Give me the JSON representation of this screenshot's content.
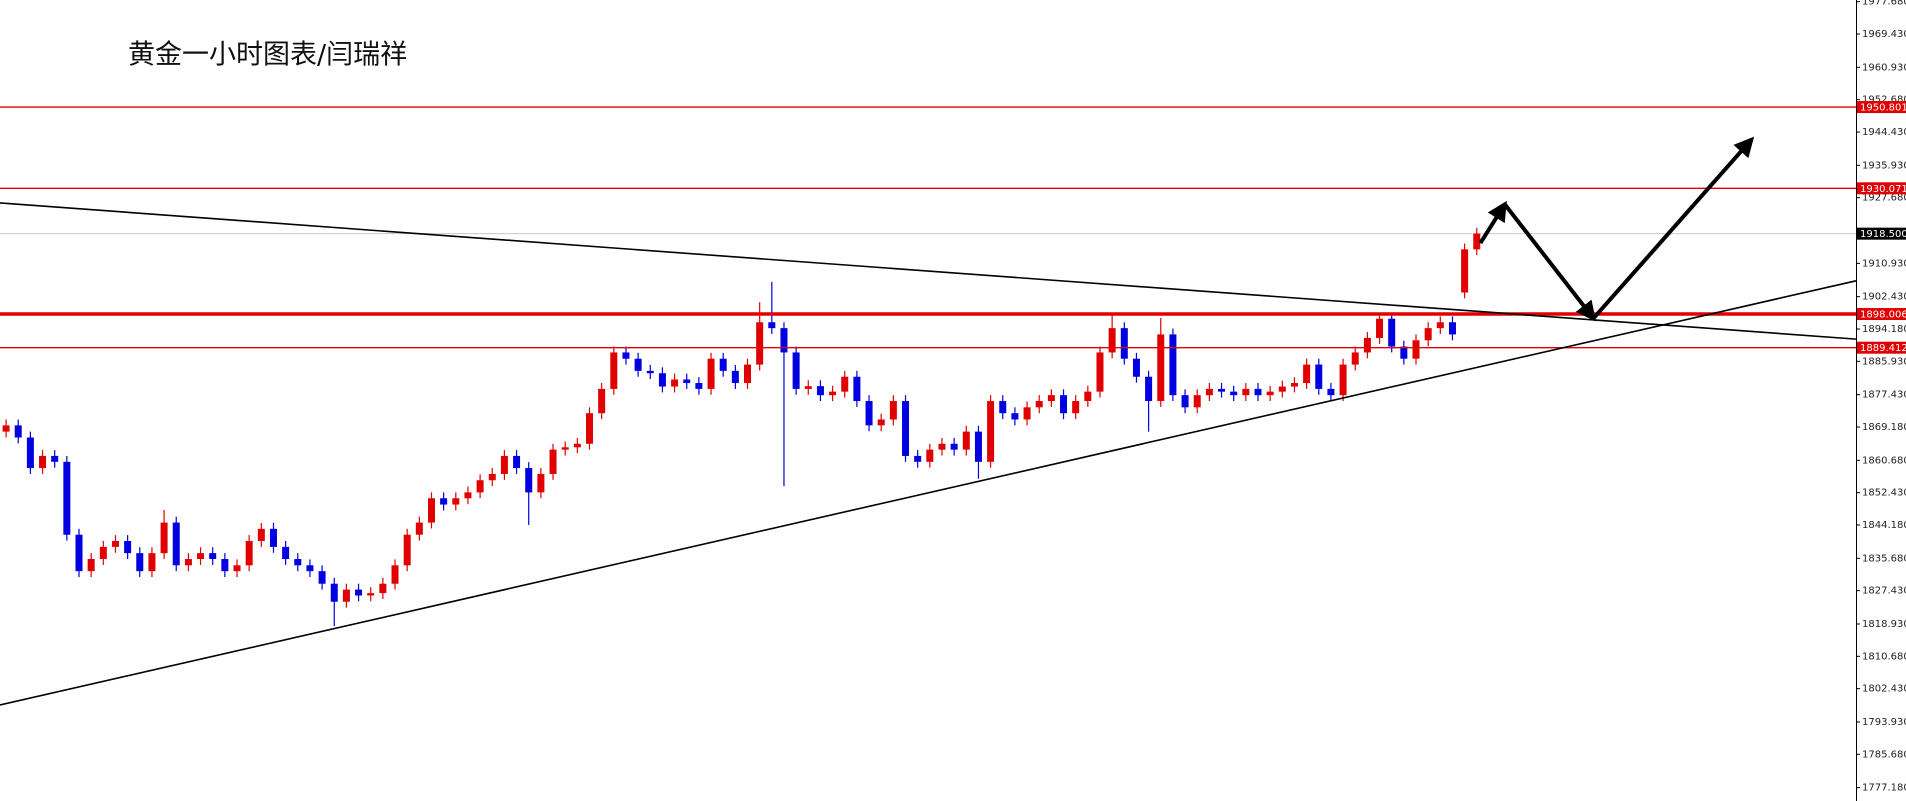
{
  "chart_data": {
    "type": "candlestick",
    "title": "黄金一小时图表/闫瑞祥",
    "up_color": "#e00000",
    "down_color": "#0000e0",
    "xlim": [
      -0.5,
      152.2
    ],
    "ylim": [
      1773.77,
      1978.11
    ],
    "yticks": [
      {
        "value": 1977.68,
        "label": "1977.680"
      },
      {
        "value": 1969.43,
        "label": "1969.430"
      },
      {
        "value": 1960.93,
        "label": "1960.930"
      },
      {
        "value": 1952.68,
        "label": "1952.680"
      },
      {
        "value": 1944.43,
        "label": "1944.430"
      },
      {
        "value": 1935.93,
        "label": "1935.930"
      },
      {
        "value": 1927.68,
        "label": "1927.680"
      },
      {
        "value": 1910.93,
        "label": "1910.930"
      },
      {
        "value": 1902.43,
        "label": "1902.430"
      },
      {
        "value": 1894.18,
        "label": "1894.180"
      },
      {
        "value": 1885.93,
        "label": "1885.930"
      },
      {
        "value": 1877.43,
        "label": "1877.430"
      },
      {
        "value": 1869.18,
        "label": "1869.180"
      },
      {
        "value": 1860.68,
        "label": "1860.680"
      },
      {
        "value": 1852.43,
        "label": "1852.430"
      },
      {
        "value": 1844.18,
        "label": "1844.180"
      },
      {
        "value": 1835.68,
        "label": "1835.680"
      },
      {
        "value": 1827.43,
        "label": "1827.430"
      },
      {
        "value": 1818.93,
        "label": "1818.930"
      },
      {
        "value": 1810.68,
        "label": "1810.680"
      },
      {
        "value": 1802.43,
        "label": "1802.430"
      },
      {
        "value": 1793.93,
        "label": "1793.930"
      },
      {
        "value": 1785.68,
        "label": "1785.680"
      },
      {
        "value": 1777.18,
        "label": "1777.180"
      }
    ],
    "levels": [
      {
        "value": 1950.801,
        "label": "1950.801"
      },
      {
        "value": 1930.071,
        "label": "1930.071"
      },
      {
        "value": 1898.006,
        "label": "1898.006"
      },
      {
        "value": 1889.412,
        "label": "1889.412"
      }
    ],
    "level_color": "#e00000",
    "current_price": {
      "value": 1918.5,
      "label": "1918.500"
    },
    "trendlines": [
      {
        "x": [
          -0.5,
          152.2
        ],
        "y": [
          1926.33,
          1891.6
        ]
      },
      {
        "x": [
          -0.5,
          152.2
        ],
        "y": [
          1798.27,
          1906.48
        ]
      }
    ],
    "arrow": {
      "x": [
        121.3,
        123.3,
        130.6,
        143.6
      ],
      "y": [
        1916.1,
        1926.0,
        1896.9,
        1942.5
      ]
    },
    "open": [
      1868.0,
      1869.6,
      1866.5,
      1858.7,
      1861.8,
      1860.3,
      1841.7,
      1832.4,
      1835.5,
      1838.6,
      1840.1,
      1837.0,
      1832.4,
      1837.0,
      1844.8,
      1833.9,
      1835.5,
      1837.0,
      1835.5,
      1832.4,
      1833.9,
      1840.1,
      1843.2,
      1838.6,
      1835.5,
      1833.9,
      1832.4,
      1829.2,
      1824.6,
      1827.7,
      1826.2,
      1826.8,
      1829.2,
      1833.9,
      1841.7,
      1844.8,
      1851.0,
      1849.4,
      1851.0,
      1852.5,
      1855.6,
      1857.2,
      1861.8,
      1858.7,
      1852.5,
      1857.2,
      1863.4,
      1864.0,
      1864.9,
      1872.7,
      1878.9,
      1888.2,
      1886.6,
      1883.5,
      1882.9,
      1879.5,
      1881.3,
      1880.4,
      1878.9,
      1886.6,
      1883.5,
      1880.4,
      1885.1,
      1895.9,
      1894.4,
      1888.2,
      1878.9,
      1879.6,
      1877.3,
      1878.2,
      1882.0,
      1875.8,
      1869.6,
      1871.1,
      1875.8,
      1861.8,
      1860.3,
      1863.4,
      1864.9,
      1863.4,
      1868.0,
      1860.3,
      1875.8,
      1872.7,
      1871.1,
      1874.2,
      1875.8,
      1877.3,
      1872.7,
      1875.8,
      1878.2,
      1888.2,
      1894.4,
      1886.6,
      1882.0,
      1875.8,
      1892.8,
      1877.3,
      1874.2,
      1877.3,
      1878.9,
      1878.2,
      1877.3,
      1878.9,
      1877.3,
      1878.2,
      1879.5,
      1880.4,
      1885.1,
      1878.9,
      1877.3,
      1885.1,
      1888.2,
      1891.9,
      1896.8,
      1889.7,
      1886.6,
      1891.3,
      1894.4,
      1895.9,
      1903.5,
      1914.5
    ],
    "high": [
      1871.1,
      1871.1,
      1868.0,
      1863.3,
      1863.3,
      1861.8,
      1843.2,
      1837.0,
      1840.1,
      1841.6,
      1841.6,
      1838.5,
      1838.5,
      1848.0,
      1846.3,
      1837.0,
      1838.5,
      1838.5,
      1837.0,
      1835.4,
      1841.6,
      1844.7,
      1844.7,
      1840.1,
      1837.0,
      1835.4,
      1833.9,
      1830.7,
      1829.2,
      1829.2,
      1828.3,
      1830.7,
      1835.4,
      1843.2,
      1846.3,
      1852.5,
      1852.5,
      1852.5,
      1854.0,
      1857.1,
      1858.7,
      1863.3,
      1863.3,
      1860.2,
      1858.7,
      1864.9,
      1865.5,
      1866.4,
      1874.2,
      1880.4,
      1889.7,
      1889.7,
      1888.1,
      1885.0,
      1884.4,
      1882.8,
      1882.8,
      1881.9,
      1888.1,
      1888.1,
      1885.0,
      1886.6,
      1901.0,
      1906.2,
      1895.9,
      1889.7,
      1881.1,
      1881.1,
      1879.7,
      1883.5,
      1883.5,
      1877.3,
      1872.6,
      1877.3,
      1877.3,
      1863.3,
      1864.9,
      1866.4,
      1866.4,
      1869.5,
      1869.5,
      1877.3,
      1877.3,
      1874.2,
      1875.7,
      1877.3,
      1878.8,
      1878.8,
      1877.3,
      1879.7,
      1889.7,
      1898.0,
      1895.9,
      1888.1,
      1883.5,
      1897.0,
      1894.3,
      1878.8,
      1878.8,
      1880.4,
      1880.4,
      1879.7,
      1880.4,
      1880.4,
      1879.7,
      1881.0,
      1881.9,
      1886.6,
      1886.6,
      1880.4,
      1886.6,
      1889.7,
      1893.4,
      1898.3,
      1898.3,
      1891.2,
      1892.8,
      1895.9,
      1897.4,
      1897.4,
      1916.0,
      1920.0
    ],
    "low": [
      1866.5,
      1865.0,
      1857.2,
      1857.2,
      1858.8,
      1840.2,
      1830.9,
      1830.9,
      1834.0,
      1837.1,
      1835.5,
      1830.9,
      1830.9,
      1835.5,
      1832.4,
      1832.4,
      1834.0,
      1834.0,
      1830.9,
      1830.9,
      1832.4,
      1838.6,
      1837.1,
      1834.0,
      1832.4,
      1830.9,
      1827.7,
      1818.4,
      1823.1,
      1824.7,
      1824.7,
      1825.3,
      1827.7,
      1832.4,
      1840.2,
      1843.3,
      1847.9,
      1847.9,
      1849.5,
      1851.0,
      1854.1,
      1855.7,
      1857.2,
      1844.2,
      1851.0,
      1855.7,
      1861.9,
      1862.5,
      1863.4,
      1871.2,
      1877.4,
      1885.1,
      1882.0,
      1881.4,
      1878.0,
      1878.0,
      1878.9,
      1877.4,
      1877.4,
      1882.0,
      1878.9,
      1878.9,
      1883.6,
      1892.9,
      1854.1,
      1877.4,
      1877.4,
      1875.8,
      1875.8,
      1876.7,
      1874.3,
      1868.1,
      1868.1,
      1869.6,
      1860.3,
      1858.8,
      1858.8,
      1861.9,
      1861.9,
      1861.9,
      1856.0,
      1858.8,
      1871.2,
      1869.6,
      1869.6,
      1872.7,
      1874.3,
      1871.2,
      1871.2,
      1874.3,
      1876.7,
      1886.7,
      1885.1,
      1880.5,
      1868.0,
      1874.3,
      1875.8,
      1872.7,
      1872.7,
      1875.8,
      1876.7,
      1875.8,
      1875.8,
      1875.8,
      1875.8,
      1876.7,
      1878.0,
      1878.9,
      1877.4,
      1875.8,
      1875.8,
      1883.6,
      1886.7,
      1890.4,
      1888.2,
      1885.1,
      1885.1,
      1889.8,
      1892.9,
      1891.3,
      1902.0,
      1913.0
    ],
    "close": [
      1869.6,
      1866.5,
      1858.7,
      1861.8,
      1860.3,
      1841.7,
      1832.4,
      1835.5,
      1838.6,
      1840.1,
      1837.0,
      1832.4,
      1837.0,
      1844.8,
      1833.9,
      1835.5,
      1837.0,
      1835.5,
      1832.4,
      1833.9,
      1840.1,
      1843.2,
      1838.6,
      1835.5,
      1833.9,
      1832.4,
      1829.2,
      1824.6,
      1827.7,
      1826.2,
      1826.8,
      1829.2,
      1833.9,
      1841.7,
      1844.8,
      1851.0,
      1849.4,
      1851.0,
      1852.5,
      1855.6,
      1857.2,
      1861.8,
      1858.7,
      1852.5,
      1857.2,
      1863.4,
      1864.0,
      1864.9,
      1872.7,
      1878.9,
      1888.2,
      1886.6,
      1883.5,
      1882.9,
      1879.5,
      1881.3,
      1880.4,
      1878.9,
      1886.6,
      1883.5,
      1880.4,
      1885.1,
      1895.9,
      1894.4,
      1888.2,
      1878.9,
      1879.6,
      1877.3,
      1878.2,
      1882.0,
      1875.8,
      1869.6,
      1871.1,
      1875.8,
      1861.8,
      1860.3,
      1863.4,
      1864.9,
      1863.4,
      1868.0,
      1860.3,
      1875.8,
      1872.7,
      1871.1,
      1874.2,
      1875.8,
      1877.3,
      1872.7,
      1875.8,
      1878.2,
      1888.2,
      1894.4,
      1886.6,
      1882.0,
      1875.8,
      1892.8,
      1877.3,
      1874.2,
      1877.3,
      1878.9,
      1878.2,
      1877.3,
      1878.9,
      1877.3,
      1878.2,
      1879.5,
      1880.4,
      1885.1,
      1878.9,
      1877.3,
      1885.1,
      1888.2,
      1891.9,
      1896.8,
      1889.7,
      1886.6,
      1891.3,
      1894.4,
      1895.9,
      1892.8,
      1914.5,
      1918.5
    ]
  }
}
